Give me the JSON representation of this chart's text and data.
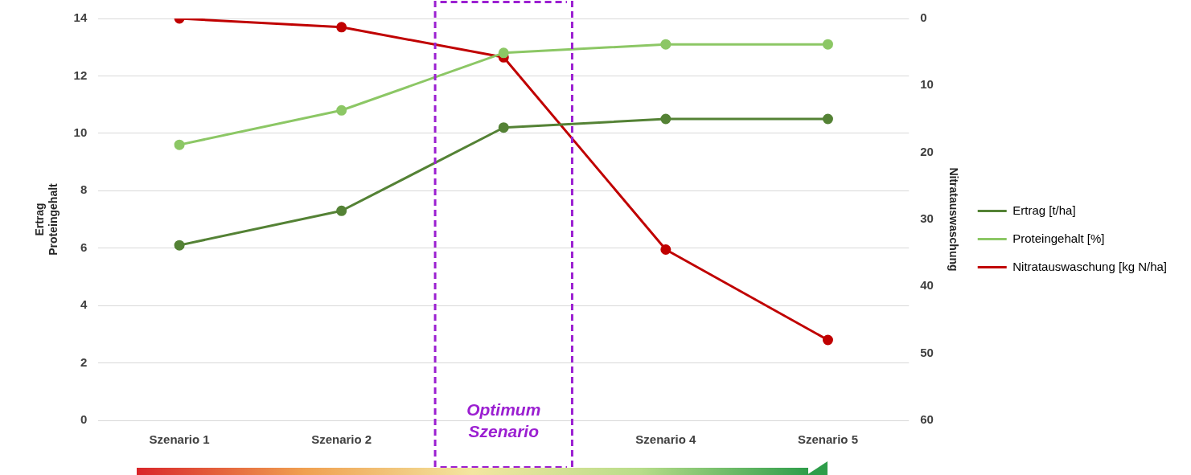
{
  "chart_data": {
    "type": "line",
    "ylabel": "Ertrag\nProteingehalt",
    "y2label": "Nitratauswaschung",
    "categories": [
      "Szenario 1",
      "Szenario 2",
      null,
      "Szenario 4",
      "Szenario 5"
    ],
    "series": [
      {
        "name": "Ertrag [t/ha]",
        "color": "#548235",
        "values": [
          6.1,
          7.3,
          10.2,
          10.5,
          10.5
        ]
      },
      {
        "name": "Proteingehalt [%]",
        "color": "#8cc765",
        "values": [
          9.6,
          10.8,
          12.8,
          13.1,
          13.1
        ]
      },
      {
        "name": "Nitratauswaschung [kg N/ha]",
        "color": "#c00000",
        "axis": "y2",
        "values": [
          0,
          1.3,
          5.8,
          34.5,
          48
        ]
      }
    ],
    "ylim": [
      0,
      14
    ],
    "yticks": [
      0,
      2,
      4,
      6,
      8,
      10,
      12,
      14
    ],
    "y2lim": [
      60,
      0
    ],
    "y2ticks": [
      0,
      10,
      20,
      30,
      40,
      50,
      60
    ],
    "annotations": [
      "Optimum Szenario"
    ],
    "grid": "y",
    "legend": "right",
    "marker": "circle",
    "line_style": "solid"
  }
}
